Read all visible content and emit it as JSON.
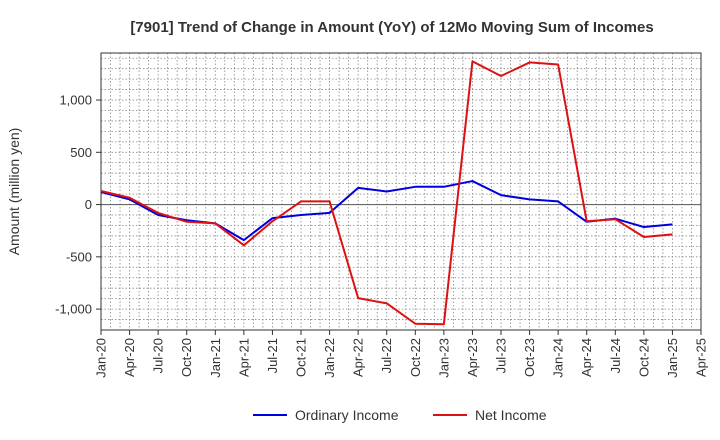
{
  "chart_data": {
    "type": "line",
    "title": "[7901]  Trend of Change in Amount (YoY) of 12Mo Moving Sum of Incomes",
    "ylabel": "Amount (million yen)",
    "xlabel": "",
    "ylim": [
      -1200,
      1450
    ],
    "yticks": [
      -1000,
      -500,
      0,
      500,
      1000
    ],
    "ytick_labels": [
      "-1,000",
      "-500",
      "0",
      "500",
      "1,000"
    ],
    "x": [
      "Jan-20",
      "Apr-20",
      "Jul-20",
      "Oct-20",
      "Jan-21",
      "Apr-21",
      "Jul-21",
      "Oct-21",
      "Jan-22",
      "Apr-22",
      "Jul-22",
      "Oct-22",
      "Jan-23",
      "Apr-23",
      "Jul-23",
      "Oct-23",
      "Jan-24",
      "Apr-24",
      "Jul-24",
      "Oct-24",
      "Jan-25",
      "Apr-25"
    ],
    "grid": true,
    "legend_position": "bottom-center",
    "series": [
      {
        "name": "Ordinary Income",
        "color": "#0000dd",
        "values": [
          120,
          50,
          -100,
          -150,
          -180,
          -340,
          -130,
          -100,
          -80,
          160,
          125,
          170,
          170,
          225,
          90,
          50,
          30,
          -165,
          -135,
          -215,
          -190,
          null
        ]
      },
      {
        "name": "Net Income",
        "color": "#dd1111",
        "values": [
          130,
          65,
          -80,
          -165,
          -180,
          -390,
          -160,
          30,
          30,
          -895,
          -945,
          -1140,
          -1145,
          1370,
          1230,
          1360,
          1340,
          -160,
          -140,
          -310,
          -285,
          null
        ]
      }
    ]
  }
}
